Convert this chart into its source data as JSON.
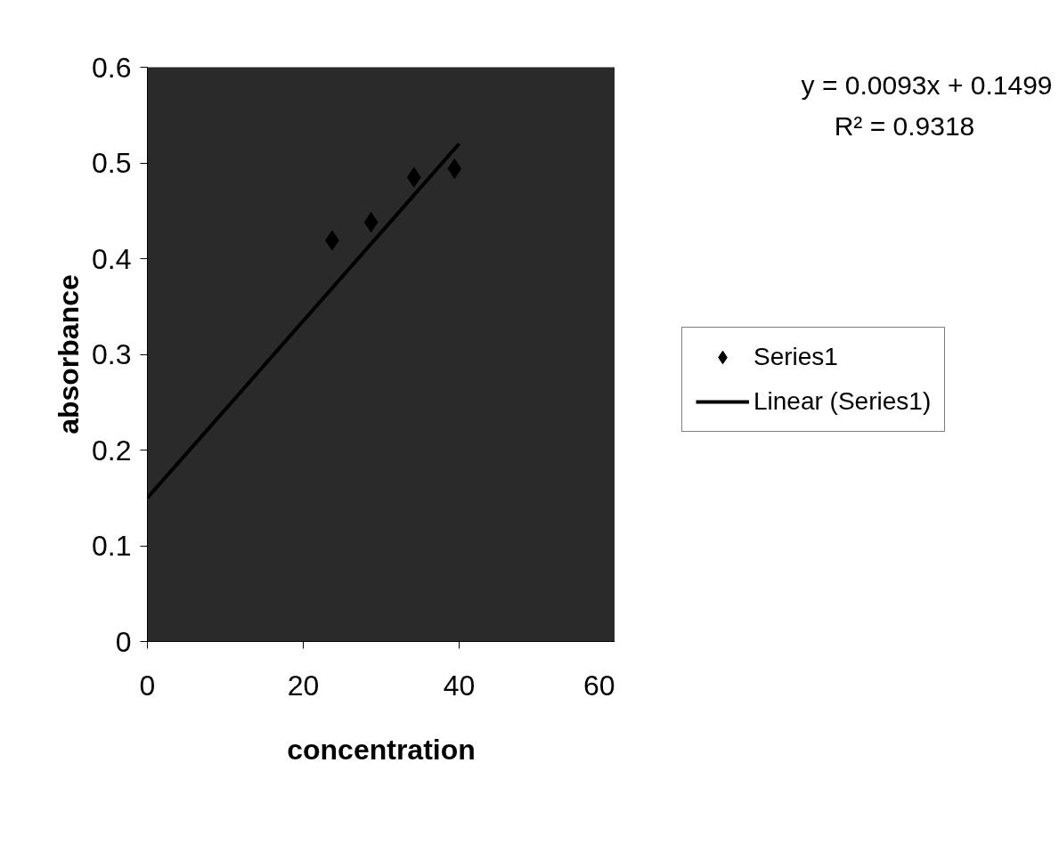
{
  "chart_data": {
    "type": "scatter",
    "xlabel": "concentration",
    "ylabel": "absorbance",
    "annotations": [
      "y = 0.0093x + 0.1499",
      "R² = 0.9318"
    ],
    "series": [
      {
        "name": "Series1",
        "color": "#000000",
        "marker": "diamond",
        "x": [
          23.7,
          28.7,
          34.2,
          39.4
        ],
        "values": [
          0.419,
          0.438,
          0.485,
          0.494
        ]
      },
      {
        "name": "Linear (Series1)",
        "type": "line",
        "color": "#000000",
        "x": [
          0,
          40
        ],
        "values": [
          0.15,
          0.52
        ]
      }
    ],
    "xlim": [
      0,
      60
    ],
    "xticks": [
      0,
      20,
      40,
      60
    ],
    "ylim": [
      0,
      0.6
    ],
    "yticks": [
      0,
      0.1,
      0.2,
      0.3,
      0.4,
      0.5,
      0.6
    ],
    "grid": false,
    "legend": "right"
  }
}
